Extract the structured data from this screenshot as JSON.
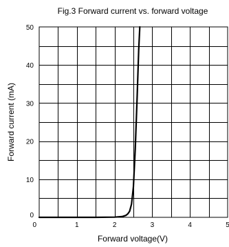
{
  "chart_data": {
    "type": "line",
    "title": "Fig.3 Forward current vs. forward voltage",
    "xlabel": "Forward voltage(V)",
    "ylabel": "Forward current (mA)",
    "xlim": [
      0,
      5
    ],
    "ylim": [
      0,
      50
    ],
    "x_ticks": [
      "0",
      "1",
      "2",
      "3",
      "4",
      "5"
    ],
    "y_ticks": [
      "0",
      "10",
      "20",
      "30",
      "40",
      "50"
    ],
    "grid": true,
    "minor_grid": {
      "x_step": 0.5,
      "y_step": 5
    },
    "series": [
      {
        "color": "#000000",
        "points": [
          [
            0.0,
            0.0
          ],
          [
            1.5,
            0.0
          ],
          [
            2.0,
            0.05
          ],
          [
            2.2,
            0.2
          ],
          [
            2.3,
            0.5
          ],
          [
            2.35,
            0.9
          ],
          [
            2.4,
            1.6
          ],
          [
            2.45,
            3.5
          ],
          [
            2.5,
            8.0
          ],
          [
            2.55,
            18.0
          ],
          [
            2.6,
            32.0
          ],
          [
            2.64,
            44.0
          ],
          [
            2.67,
            50.0
          ]
        ]
      }
    ]
  }
}
